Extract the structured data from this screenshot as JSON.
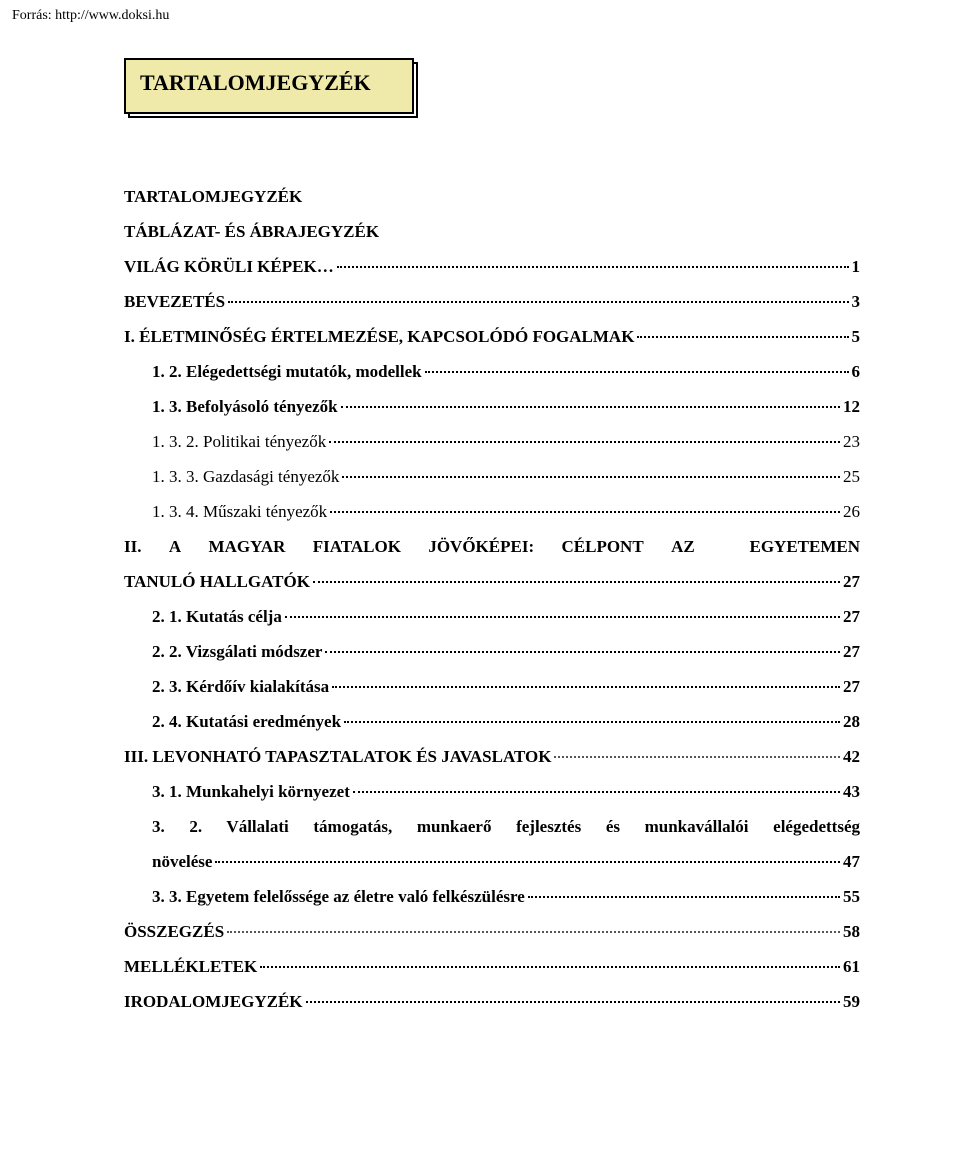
{
  "source_label": "Forrás: http://www.doksi.hu",
  "title": "TARTALOMJEGYZÉK",
  "colors": {
    "title_bg": "#efeaa9",
    "title_border": "#000000",
    "text": "#000000",
    "background": "#ffffff"
  },
  "typography": {
    "font_family": "Times New Roman",
    "title_fontsize_pt": 16,
    "body_fontsize_pt": 13,
    "source_fontsize_pt": 10
  },
  "toc": [
    {
      "label": "TARTALOMJEGYZÉK",
      "page": "",
      "bold": true,
      "indent": 0,
      "nopage": true
    },
    {
      "label": "TÁBLÁZAT- ÉS ÁBRAJEGYZÉK",
      "page": "",
      "bold": true,
      "indent": 0,
      "nopage": true
    },
    {
      "label": "VILÁG KÖRÜLI KÉPEK…",
      "page": "1",
      "bold": true,
      "indent": 0
    },
    {
      "label": "BEVEZETÉS",
      "page": "3",
      "bold": true,
      "indent": 0
    },
    {
      "label": "I. ÉLETMINŐSÉG ÉRTELMEZÉSE, KAPCSOLÓDÓ FOGALMAK",
      "page": "5",
      "bold": true,
      "indent": 0
    },
    {
      "label": "1. 2. Elégedettségi mutatók, modellek",
      "page": "6",
      "bold": true,
      "indent": 1
    },
    {
      "label": "1. 3. Befolyásoló tényezők",
      "page": "12",
      "bold": true,
      "indent": 1
    },
    {
      "label": "1. 3. 2. Politikai tényezők",
      "page": "23",
      "bold": false,
      "indent": 1
    },
    {
      "label": "1. 3. 3. Gazdasági tényezők",
      "page": "25",
      "bold": false,
      "indent": 1
    },
    {
      "label": "1. 3. 4. Műszaki tényezők",
      "page": "26",
      "bold": false,
      "indent": 1
    },
    {
      "multiline": true,
      "line1": "II.  A  MAGYAR  FIATALOK  JÖVŐKÉPEI:  CÉLPONT  AZ    EGYETEMEN",
      "line2": "TANULÓ HALLGATÓK",
      "page": "27",
      "bold": true,
      "indent": 0
    },
    {
      "label": "2. 1. Kutatás célja",
      "page": "27",
      "bold": true,
      "indent": 1
    },
    {
      "label": "2. 2. Vizsgálati módszer",
      "page": "27",
      "bold": true,
      "indent": 1
    },
    {
      "label": "2. 3. Kérdőív kialakítása",
      "page": "27",
      "bold": true,
      "indent": 1
    },
    {
      "label": "2. 4. Kutatási eredmények",
      "page": "28",
      "bold": true,
      "indent": 1
    },
    {
      "label": "III. LEVONHATÓ TAPASZTALATOK ÉS JAVASLATOK",
      "page": "42",
      "bold": true,
      "indent": 0,
      "lightdots": true
    },
    {
      "label": "3. 1. Munkahelyi környezet",
      "page": "43",
      "bold": true,
      "indent": 1
    },
    {
      "multiline": true,
      "line1": "3. 2. Vállalati támogatás, munkaerő fejlesztés és munkavállalói elégedettség",
      "line2": "növelése",
      "page": "47",
      "bold": true,
      "indent": 1
    },
    {
      "label": "3. 3. Egyetem felelőssége az életre való felkészülésre",
      "page": "55",
      "bold": true,
      "indent": 1
    },
    {
      "label": "ÖSSZEGZÉS",
      "page": "58",
      "bold": true,
      "indent": 0,
      "lightdots": true
    },
    {
      "label": "MELLÉKLETEK",
      "page": "61",
      "bold": true,
      "indent": 0
    },
    {
      "label": "IRODALOMJEGYZÉK",
      "page": "59",
      "bold": true,
      "indent": 0
    }
  ]
}
